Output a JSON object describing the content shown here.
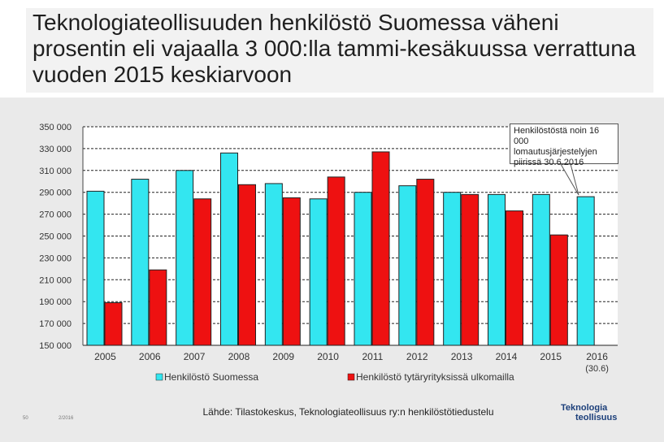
{
  "title": "Teknologiateollisuuden henkilöstö Suomessa väheni prosentin eli vajaalla 3 000:lla tammi-kesäkuussa verrattuna vuoden 2015 keskiarvoon",
  "callout": "Henkilöstöstä noin 16 000 lomautusjärjestelyjen piirissä 30.6.2016",
  "source": "Lähde: Tilastokeskus, Teknologiateollisuus ry:n henkilöstötiedustelu",
  "footer": {
    "page": "50",
    "date": "2/2016"
  },
  "logo": {
    "line1": "Teknologia",
    "line2": "teollisuus"
  },
  "colors": {
    "series1": "#33e6f0",
    "series2": "#ee1111",
    "grid": "#222222",
    "background": "#eaeaea"
  },
  "chart_data": {
    "type": "bar",
    "categories": [
      "2005",
      "2006",
      "2007",
      "2008",
      "2009",
      "2010",
      "2011",
      "2012",
      "2013",
      "2014",
      "2015",
      "2016"
    ],
    "category_sublabels": [
      "",
      "",
      "",
      "",
      "",
      "",
      "",
      "",
      "",
      "",
      "",
      "(30.6)"
    ],
    "yticks": [
      "150 000",
      "170 000",
      "190 000",
      "210 000",
      "230 000",
      "250 000",
      "270 000",
      "290 000",
      "310 000",
      "330 000",
      "350 000"
    ],
    "ylim": [
      150000,
      350000
    ],
    "series": [
      {
        "name": "Henkilöstö Suomessa",
        "values": [
          291000,
          302000,
          310000,
          326000,
          298000,
          284000,
          290000,
          296000,
          290000,
          288000,
          288000,
          286000
        ]
      },
      {
        "name": "Henkilöstö tytäryrityksissä ulkomailla",
        "values": [
          189000,
          219000,
          284000,
          297000,
          285000,
          304000,
          327000,
          302000,
          288000,
          273000,
          251000,
          null
        ]
      }
    ]
  }
}
